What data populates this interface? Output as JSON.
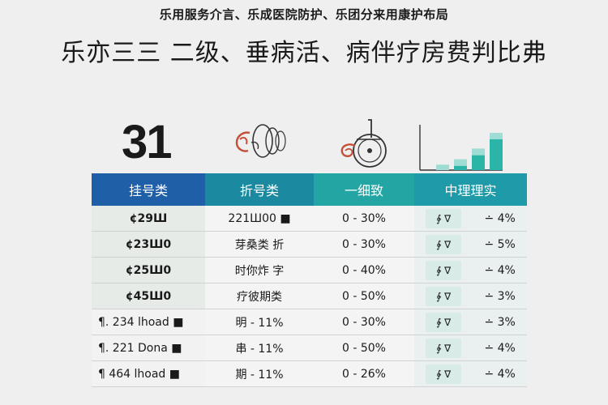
{
  "subtitle": "乐用服务介言、乐成医院防护、乐团分来用康护布局",
  "title": "乐亦三三  二级、垂病活、病伴疗房费判比弗",
  "big_number": "31",
  "icons": [
    "ear-icon",
    "wheelchair-icon",
    "bar-chart-icon"
  ],
  "colors": {
    "header_dark_blue": "#1f5fa8",
    "header_teal": "#22a5a3",
    "chart_teal": "#2ab5a8",
    "icon_red": "#c5503a"
  },
  "chart_icon": {
    "bars": [
      1,
      2,
      4,
      7
    ]
  },
  "table": {
    "headers": [
      "挂号类",
      "折号类",
      "一细致",
      "中理理实"
    ],
    "rows": [
      {
        "c1": "¢29Ш",
        "c2": "221Ш00 ■",
        "c3": "0 - 30%",
        "c4a": "∲ ∇",
        "c4b": "∸ 4%"
      },
      {
        "c1": "¢23Ш0",
        "c2": "芽桑类 折",
        "c3": "0 - 30%",
        "c4a": "∲ ∇",
        "c4b": "∸ 5%"
      },
      {
        "c1": "¢25Ш0",
        "c2": "时你炸 字",
        "c3": "0 - 40%",
        "c4a": "∲ ∇",
        "c4b": "∸ 4%"
      },
      {
        "c1": "¢45Ш0",
        "c2": "疗彼期类",
        "c3": "0 - 50%",
        "c4a": "∲ ∇",
        "c4b": "∸ 3%"
      },
      {
        "c1": "¶. 234 lhoad ■",
        "c2": "明 - 11%",
        "c3": "0 - 30%",
        "c4a": "∲ ∇",
        "c4b": "∸ 3%"
      },
      {
        "c1": "¶. 221 Dona ■",
        "c2": "串 - 11%",
        "c3": "0 - 50%",
        "c4a": "∲ ∇",
        "c4b": "∸ 4%"
      },
      {
        "c1": "¶ 464 lhoad ■",
        "c2": "期 - 11%",
        "c3": "0 - 26%",
        "c4a": "∲ ∇",
        "c4b": "∸ 4%"
      }
    ]
  }
}
